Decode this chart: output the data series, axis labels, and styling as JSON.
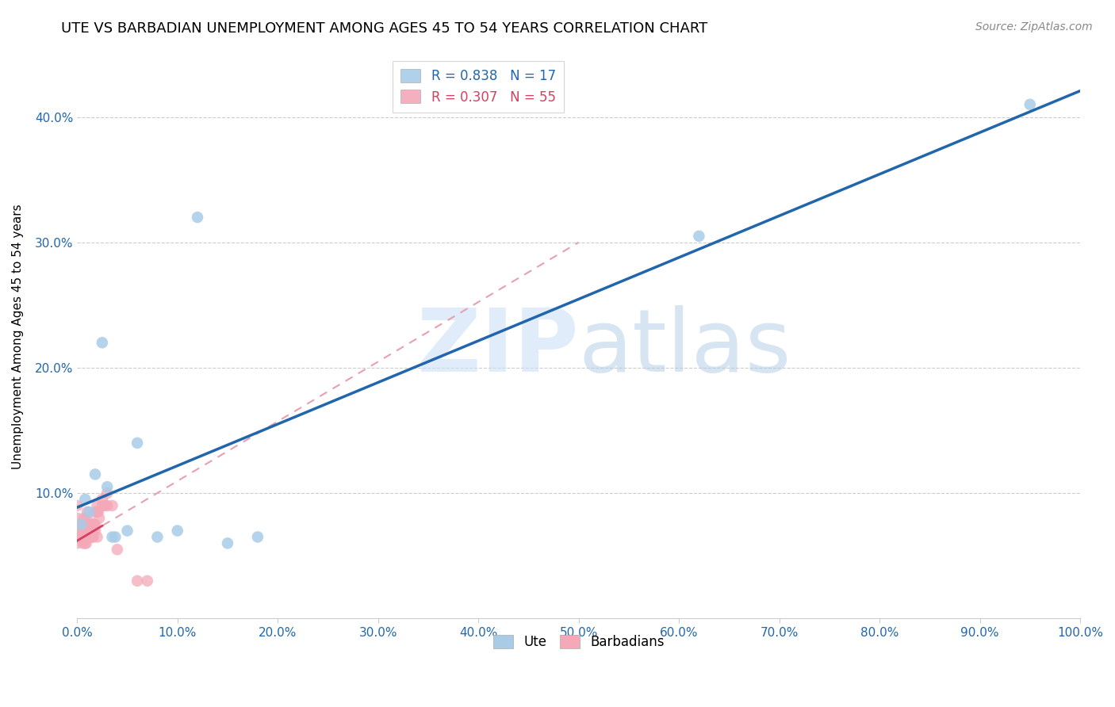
{
  "title": "UTE VS BARBADIAN UNEMPLOYMENT AMONG AGES 45 TO 54 YEARS CORRELATION CHART",
  "source": "Source: ZipAtlas.com",
  "ylabel": "Unemployment Among Ages 45 to 54 years",
  "xlim": [
    0,
    1.0
  ],
  "ylim": [
    0,
    0.45
  ],
  "xtick_labels": [
    "0.0%",
    "10.0%",
    "20.0%",
    "30.0%",
    "40.0%",
    "50.0%",
    "60.0%",
    "70.0%",
    "80.0%",
    "90.0%",
    "100.0%"
  ],
  "xtick_values": [
    0.0,
    0.1,
    0.2,
    0.3,
    0.4,
    0.5,
    0.6,
    0.7,
    0.8,
    0.9,
    1.0
  ],
  "ytick_labels": [
    "10.0%",
    "20.0%",
    "30.0%",
    "40.0%"
  ],
  "ytick_values": [
    0.1,
    0.2,
    0.3,
    0.4
  ],
  "legend_ute_r": "0.838",
  "legend_ute_n": "17",
  "legend_barb_r": "0.307",
  "legend_barb_n": "55",
  "ute_color": "#a8cce8",
  "barb_color": "#f4a8b8",
  "ute_line_color": "#2166ac",
  "barb_line_color": "#d64060",
  "barb_dashed_color": "#e8a0b0",
  "background_color": "#ffffff",
  "ute_scatter_x": [
    0.004,
    0.008,
    0.012,
    0.018,
    0.025,
    0.03,
    0.035,
    0.038,
    0.05,
    0.06,
    0.08,
    0.1,
    0.12,
    0.15,
    0.18,
    0.62,
    0.95
  ],
  "ute_scatter_y": [
    0.075,
    0.095,
    0.085,
    0.115,
    0.22,
    0.105,
    0.065,
    0.065,
    0.07,
    0.14,
    0.065,
    0.07,
    0.32,
    0.06,
    0.065,
    0.305,
    0.41
  ],
  "barb_scatter_x": [
    0.0,
    0.0,
    0.0,
    0.0,
    0.0,
    0.003,
    0.003,
    0.004,
    0.005,
    0.005,
    0.005,
    0.006,
    0.006,
    0.007,
    0.007,
    0.007,
    0.008,
    0.008,
    0.008,
    0.009,
    0.009,
    0.01,
    0.01,
    0.01,
    0.01,
    0.01,
    0.011,
    0.012,
    0.012,
    0.013,
    0.013,
    0.014,
    0.015,
    0.015,
    0.015,
    0.016,
    0.016,
    0.017,
    0.018,
    0.018,
    0.019,
    0.02,
    0.02,
    0.02,
    0.021,
    0.022,
    0.025,
    0.025,
    0.028,
    0.03,
    0.03,
    0.035,
    0.04,
    0.06,
    0.07
  ],
  "barb_scatter_y": [
    0.06,
    0.065,
    0.07,
    0.08,
    0.09,
    0.065,
    0.075,
    0.065,
    0.065,
    0.07,
    0.075,
    0.06,
    0.065,
    0.065,
    0.07,
    0.08,
    0.06,
    0.065,
    0.07,
    0.06,
    0.065,
    0.065,
    0.07,
    0.075,
    0.08,
    0.085,
    0.065,
    0.065,
    0.075,
    0.065,
    0.07,
    0.07,
    0.065,
    0.07,
    0.075,
    0.065,
    0.07,
    0.075,
    0.07,
    0.075,
    0.085,
    0.065,
    0.085,
    0.09,
    0.085,
    0.08,
    0.09,
    0.095,
    0.09,
    0.09,
    0.1,
    0.09,
    0.055,
    0.03,
    0.03
  ],
  "title_fontsize": 13,
  "axis_label_fontsize": 11,
  "tick_fontsize": 11,
  "source_fontsize": 10,
  "legend_fontsize": 12,
  "marker_size": 110
}
